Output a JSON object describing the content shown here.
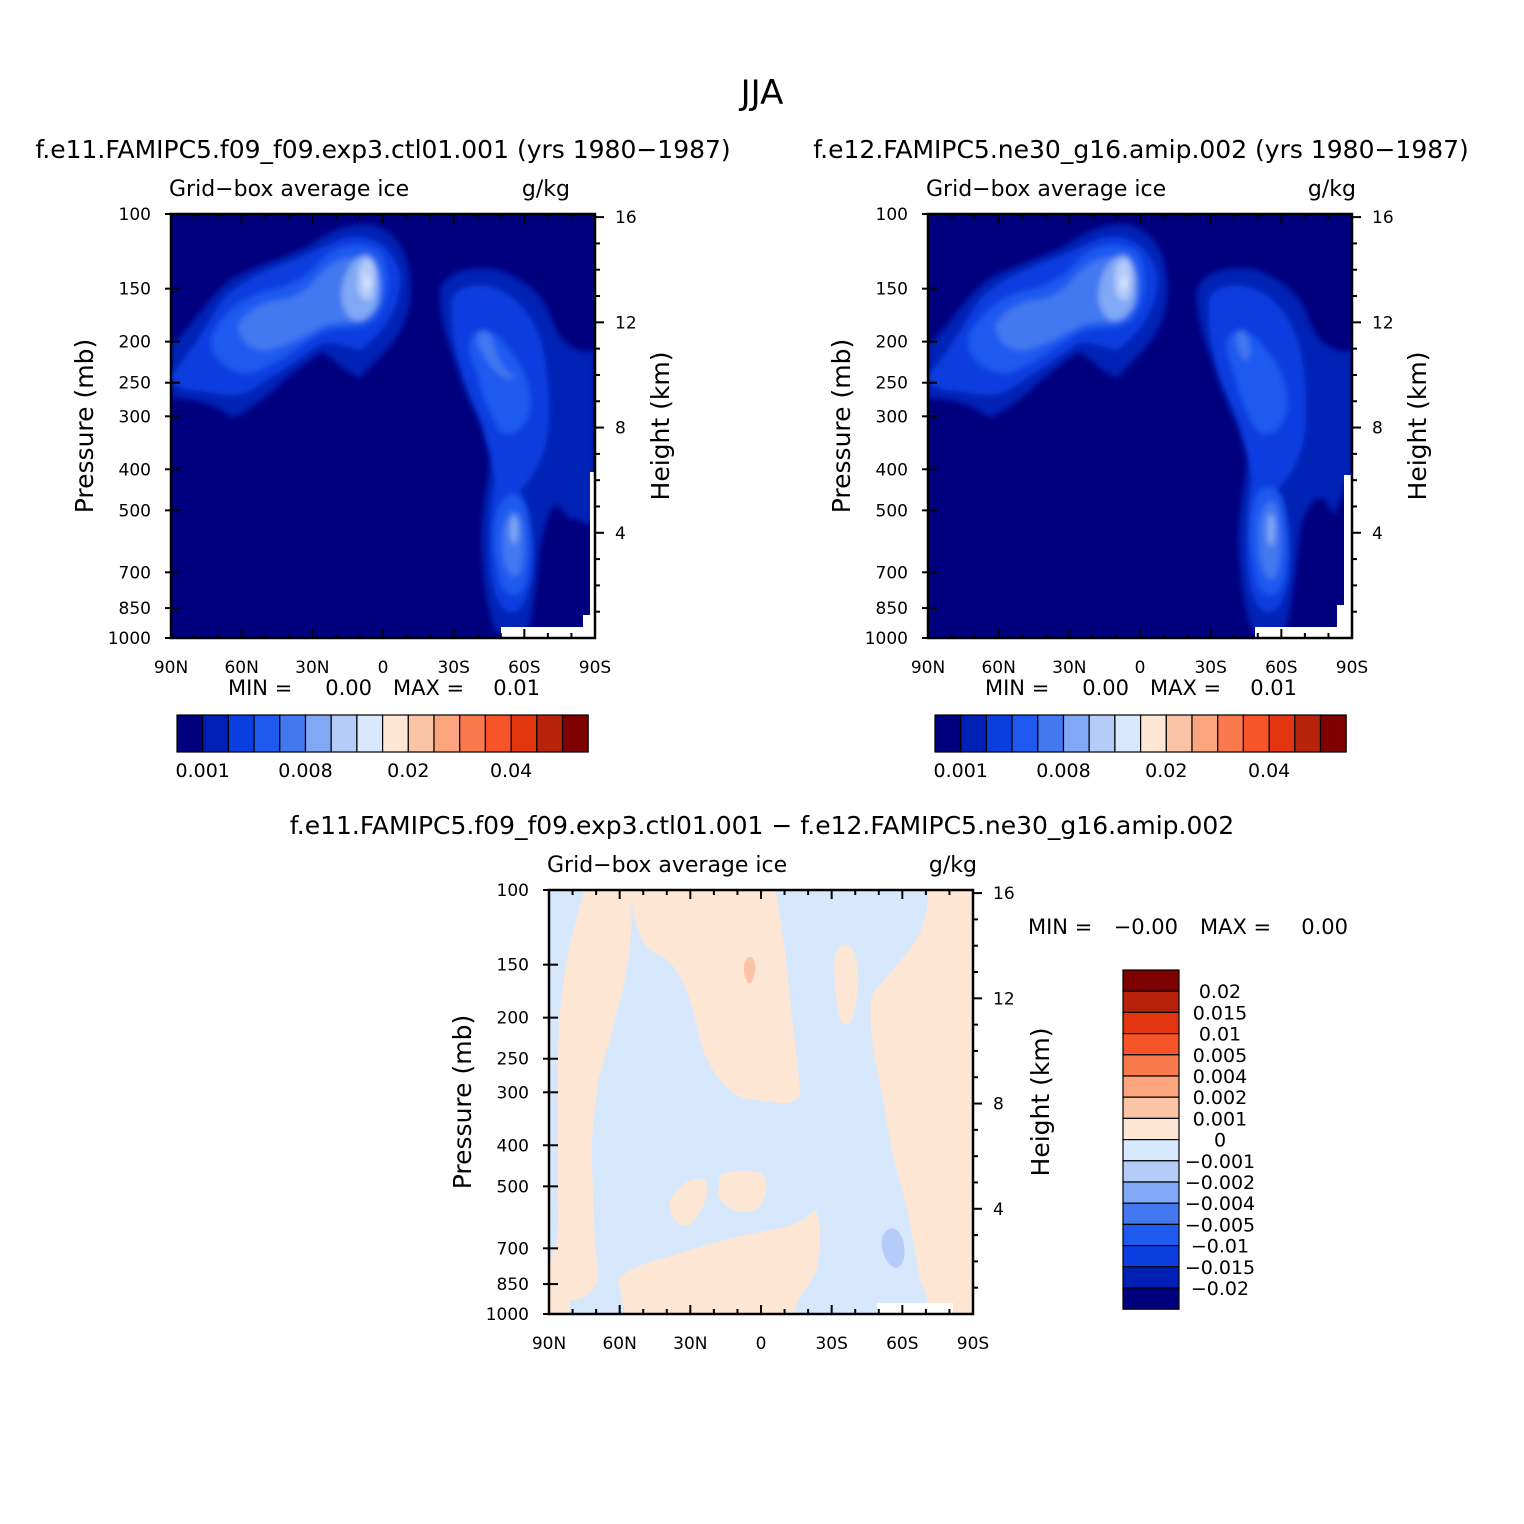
{
  "figure": {
    "title": "JJA"
  },
  "chart_data": [
    {
      "type": "heatmap",
      "title": "f.e11.FAMIPC5.f09_f09.exp3.ctl01.001 (yrs 1980−1987)",
      "subtitle_left": "Grid−box average ice",
      "subtitle_right": "g/kg",
      "ylabel": "Pressure (mb)",
      "y2label": "Height (km)",
      "x_ticks": [
        "90N",
        "60N",
        "30N",
        "0",
        "30S",
        "60S",
        "90S"
      ],
      "y_ticks": [
        100,
        150,
        200,
        250,
        300,
        400,
        500,
        700,
        850,
        1000
      ],
      "y2_ticks": [
        16,
        12,
        8,
        4
      ],
      "min_label": "MIN =",
      "min_value": "0.00",
      "max_label": "MAX =",
      "max_value": "0.01",
      "colorbar_labels": [
        "0.001",
        "0.008",
        "0.02",
        "0.04"
      ],
      "levels": [
        0.001,
        0.002,
        0.004,
        0.006,
        0.008,
        0.01,
        0.015,
        0.02,
        0.025,
        0.03,
        0.035,
        0.04,
        0.045,
        0.05
      ]
    },
    {
      "type": "heatmap",
      "title": "f.e12.FAMIPC5.ne30_g16.amip.002 (yrs 1980−1987)",
      "subtitle_left": "Grid−box average ice",
      "subtitle_right": "g/kg",
      "ylabel": "Pressure (mb)",
      "y2label": "Height (km)",
      "x_ticks": [
        "90N",
        "60N",
        "30N",
        "0",
        "30S",
        "60S",
        "90S"
      ],
      "y_ticks": [
        100,
        150,
        200,
        250,
        300,
        400,
        500,
        700,
        850,
        1000
      ],
      "y2_ticks": [
        16,
        12,
        8,
        4
      ],
      "min_label": "MIN =",
      "min_value": "0.00",
      "max_label": "MAX =",
      "max_value": "0.01",
      "colorbar_labels": [
        "0.001",
        "0.008",
        "0.02",
        "0.04"
      ],
      "levels": [
        0.001,
        0.002,
        0.004,
        0.006,
        0.008,
        0.01,
        0.015,
        0.02,
        0.025,
        0.03,
        0.035,
        0.04,
        0.045,
        0.05
      ]
    },
    {
      "type": "heatmap",
      "title": "f.e11.FAMIPC5.f09_f09.exp3.ctl01.001 − f.e12.FAMIPC5.ne30_g16.amip.002",
      "subtitle_left": "Grid−box average ice",
      "subtitle_right": "g/kg",
      "ylabel": "Pressure (mb)",
      "y2label": "Height (km)",
      "x_ticks": [
        "90N",
        "60N",
        "30N",
        "0",
        "30S",
        "60S",
        "90S"
      ],
      "y_ticks": [
        100,
        150,
        200,
        250,
        300,
        400,
        500,
        700,
        850,
        1000
      ],
      "y2_ticks": [
        16,
        12,
        8,
        4
      ],
      "min_label": "MIN =",
      "min_value": "−0.00",
      "max_label": "MAX =",
      "max_value": "0.00",
      "colorbar_labels": [
        "0.02",
        "0.015",
        "0.01",
        "0.005",
        "0.004",
        "0.002",
        "0.001",
        "0",
        "−0.001",
        "−0.002",
        "−0.004",
        "−0.005",
        "−0.01",
        "−0.015",
        "−0.02"
      ]
    }
  ],
  "palette": [
    "#00007f",
    "#0020b5",
    "#0a3ee0",
    "#1e5af0",
    "#4378f0",
    "#80a8f5",
    "#b5ccf9",
    "#d8e8fc",
    "#fde6d4",
    "#fcc4a7",
    "#fba47e",
    "#fa7a4e",
    "#f8542a",
    "#e33610",
    "#b8220a",
    "#7f0000"
  ]
}
